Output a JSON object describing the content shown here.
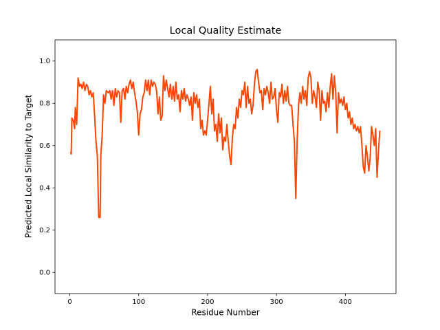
{
  "chart_data": {
    "type": "line",
    "title": "Local Quality Estimate",
    "xlabel": "Residue Number",
    "ylabel": "Predicted Local Similarity to Target",
    "color": "#ff4500",
    "x": [
      1,
      2,
      3,
      5,
      7,
      8,
      10,
      12,
      14,
      16,
      18,
      20,
      22,
      24,
      26,
      28,
      30,
      32,
      34,
      36,
      38,
      40,
      41,
      42,
      44,
      45,
      47,
      49,
      51,
      53,
      56,
      58,
      60,
      62,
      64,
      66,
      68,
      70,
      72,
      74,
      76,
      78,
      80,
      82,
      84,
      86,
      88,
      90,
      92,
      94,
      96,
      98,
      100,
      102,
      104,
      106,
      108,
      110,
      112,
      114,
      116,
      118,
      120,
      122,
      124,
      126,
      128,
      130,
      132,
      134,
      136,
      138,
      140,
      142,
      144,
      146,
      148,
      150,
      152,
      154,
      156,
      158,
      160,
      162,
      164,
      166,
      168,
      170,
      172,
      174,
      176,
      178,
      180,
      182,
      184,
      186,
      188,
      190,
      192,
      194,
      196,
      198,
      200,
      202,
      204,
      206,
      208,
      210,
      212,
      214,
      216,
      218,
      220,
      222,
      224,
      226,
      228,
      230,
      232,
      234,
      236,
      238,
      240,
      242,
      244,
      246,
      248,
      250,
      252,
      254,
      256,
      258,
      260,
      262,
      264,
      266,
      268,
      270,
      272,
      274,
      276,
      278,
      280,
      282,
      284,
      286,
      288,
      290,
      292,
      294,
      296,
      298,
      300,
      302,
      304,
      306,
      308,
      310,
      312,
      314,
      316,
      318,
      320,
      322,
      324,
      326,
      328,
      330,
      332,
      334,
      336,
      338,
      340,
      342,
      344,
      346,
      348,
      350,
      352,
      354,
      356,
      358,
      360,
      362,
      364,
      366,
      368,
      370,
      372,
      374,
      376,
      378,
      380,
      382,
      384,
      386,
      388,
      390,
      392,
      394,
      396,
      398,
      400,
      402,
      404,
      406,
      408,
      410,
      412,
      414,
      416,
      418,
      420,
      422,
      424,
      426,
      428,
      430,
      432,
      434,
      436,
      438,
      440,
      442,
      444,
      446,
      448,
      450
    ],
    "values": [
      0.57,
      0.56,
      0.73,
      0.72,
      0.68,
      0.78,
      0.7,
      0.92,
      0.88,
      0.89,
      0.87,
      0.9,
      0.86,
      0.89,
      0.88,
      0.84,
      0.86,
      0.83,
      0.85,
      0.74,
      0.62,
      0.55,
      0.4,
      0.26,
      0.26,
      0.55,
      0.65,
      0.84,
      0.8,
      0.86,
      0.85,
      0.86,
      0.82,
      0.86,
      0.79,
      0.87,
      0.83,
      0.86,
      0.85,
      0.71,
      0.86,
      0.87,
      0.82,
      0.88,
      0.85,
      0.89,
      0.91,
      0.87,
      0.9,
      0.85,
      0.81,
      0.76,
      0.65,
      0.75,
      0.77,
      0.83,
      0.85,
      0.91,
      0.86,
      0.91,
      0.84,
      0.91,
      0.88,
      0.9,
      0.89,
      0.86,
      0.75,
      0.83,
      0.72,
      0.74,
      0.93,
      0.86,
      0.91,
      0.87,
      0.83,
      0.89,
      0.82,
      0.88,
      0.81,
      0.9,
      0.82,
      0.84,
      0.76,
      0.86,
      0.82,
      0.87,
      0.81,
      0.84,
      0.82,
      0.79,
      0.83,
      0.72,
      0.85,
      0.8,
      0.84,
      0.78,
      0.82,
      0.68,
      0.72,
      0.65,
      0.67,
      0.65,
      0.72,
      0.8,
      0.88,
      0.75,
      0.82,
      0.67,
      0.7,
      0.62,
      0.75,
      0.66,
      0.73,
      0.58,
      0.64,
      0.62,
      0.7,
      0.62,
      0.55,
      0.51,
      0.64,
      0.7,
      0.68,
      0.78,
      0.73,
      0.82,
      0.78,
      0.86,
      0.84,
      0.9,
      0.78,
      0.88,
      0.8,
      0.82,
      0.75,
      0.79,
      0.89,
      0.95,
      0.96,
      0.9,
      0.85,
      0.86,
      0.77,
      0.87,
      0.84,
      0.88,
      0.85,
      0.8,
      0.9,
      0.82,
      0.83,
      0.87,
      0.77,
      0.71,
      0.85,
      0.83,
      0.89,
      0.8,
      0.86,
      0.81,
      0.88,
      0.8,
      0.79,
      0.79,
      0.7,
      0.62,
      0.35,
      0.62,
      0.79,
      0.85,
      0.8,
      0.88,
      0.82,
      0.86,
      0.79,
      0.92,
      0.95,
      0.92,
      0.8,
      0.86,
      0.83,
      0.78,
      0.9,
      0.86,
      0.72,
      0.86,
      0.8,
      0.81,
      0.76,
      0.85,
      0.78,
      0.88,
      0.94,
      0.82,
      0.93,
      0.85,
      0.66,
      0.85,
      0.8,
      0.82,
      0.79,
      0.83,
      0.77,
      0.8,
      0.73,
      0.76,
      0.7,
      0.73,
      0.68,
      0.7,
      0.67,
      0.69,
      0.66,
      0.69,
      0.6,
      0.5,
      0.47,
      0.6,
      0.55,
      0.48,
      0.54,
      0.69,
      0.65,
      0.6,
      0.68,
      0.45,
      0.57,
      0.67
    ],
    "xlim": [
      -21.5,
      473.5
    ],
    "ylim": [
      -0.1,
      1.1
    ],
    "xticks": [
      0,
      100,
      200,
      300,
      400
    ],
    "yticks": [
      {
        "value": 0,
        "label": "0.0"
      },
      0.2,
      0.4,
      0.6,
      0.8,
      {
        "value": 1,
        "label": "1.0"
      }
    ]
  }
}
